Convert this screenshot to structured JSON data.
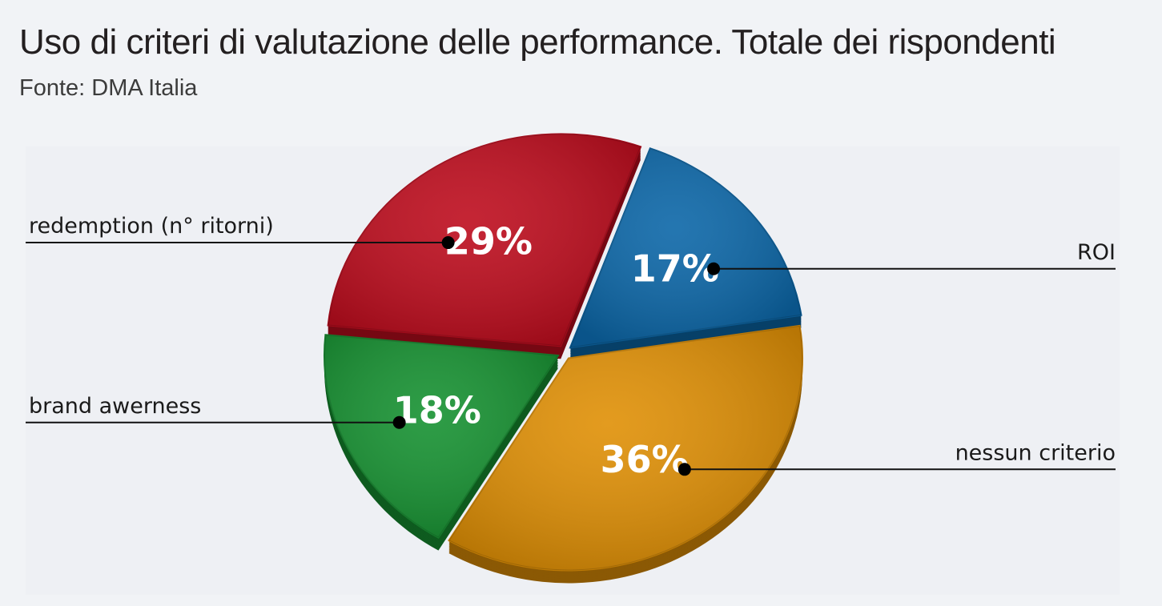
{
  "title": "Uso di criteri di valutazione delle performance. Totale dei rispondenti",
  "source": "Fonte: DMA Italia",
  "colors": {
    "background": "#f1f3f6",
    "roi": "#0c67a8",
    "nessun_criterio": "#e09006",
    "brand_awerness": "#179232",
    "redemption": "#be0d1e",
    "leader_lines": "#111111",
    "percent_text": "#ffffff"
  },
  "chart_data": {
    "type": "pie",
    "title": "Uso di criteri di valutazione delle performance. Totale dei rispondenti",
    "style": "3d-exploded",
    "unit": "%",
    "slices": [
      {
        "label": "ROI",
        "value": 17,
        "display": "17%",
        "color": "#0c67a8",
        "legend_side": "right"
      },
      {
        "label": "nessun criterio",
        "value": 36,
        "display": "36%",
        "color": "#e09006",
        "legend_side": "right"
      },
      {
        "label": "brand awerness",
        "value": 18,
        "display": "18%",
        "color": "#179232",
        "legend_side": "left"
      },
      {
        "label": "redemption (n° ritorni)",
        "value": 29,
        "display": "29%",
        "color": "#be0d1e",
        "legend_side": "left"
      }
    ]
  }
}
